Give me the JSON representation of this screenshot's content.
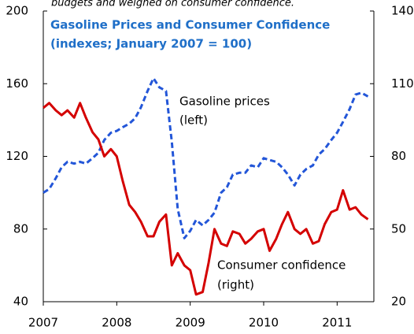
{
  "chart_data": {
    "type": "line",
    "caption": "budgets and weighed on consumer confidence.",
    "title": "Gasoline Prices and Consumer Confidence",
    "subtitle": "(indexes; January 2007 = 100)",
    "annotations": [
      "Gasoline prices",
      "(left)",
      "Consumer confidence",
      "(right)"
    ],
    "x": [
      2007,
      2007.08,
      2007.17,
      2007.25,
      2007.33,
      2007.42,
      2007.5,
      2007.58,
      2007.67,
      2007.75,
      2007.83,
      2007.92,
      2008,
      2008.08,
      2008.17,
      2008.25,
      2008.33,
      2008.42,
      2008.5,
      2008.58,
      2008.67,
      2008.75,
      2008.83,
      2008.92,
      2009,
      2009.08,
      2009.17,
      2009.25,
      2009.33,
      2009.42,
      2009.5,
      2009.58,
      2009.67,
      2009.75,
      2009.83,
      2009.92,
      2010,
      2010.08,
      2010.17,
      2010.25,
      2010.33,
      2010.42,
      2010.5,
      2010.58,
      2010.67,
      2010.75,
      2010.83,
      2010.92,
      2011,
      2011.08,
      2011.17,
      2011.25,
      2011.33,
      2011.42
    ],
    "series": [
      {
        "name": "Gasoline prices",
        "color": "#2356d8",
        "dash": true,
        "values": [
          100,
          102,
          108,
          114,
          117,
          116,
          117,
          116,
          119,
          122,
          129,
          133,
          134,
          136,
          138,
          141,
          147,
          156,
          163,
          158,
          156,
          128,
          91,
          75,
          79,
          85,
          82,
          85,
          89,
          100,
          103,
          110,
          111,
          111,
          115,
          114,
          119,
          118,
          117,
          114,
          110,
          104,
          110,
          113,
          115,
          121,
          124,
          129,
          133,
          139,
          146,
          154,
          155,
          153
        ]
      },
      {
        "name": "Consumer confidence",
        "color": "#d40000",
        "dash": false,
        "axis": "y2",
        "values": [
          100,
          102,
          99,
          97,
          99,
          96,
          102,
          96,
          90,
          87,
          80,
          83,
          80,
          70,
          60,
          57,
          53,
          47,
          47,
          53,
          56,
          35,
          40,
          35,
          33,
          23,
          24,
          36,
          50,
          44,
          43,
          49,
          48,
          44,
          46,
          49,
          50,
          41,
          46,
          52,
          57,
          50,
          48,
          50,
          44,
          45,
          52,
          57,
          58,
          66,
          58,
          59,
          56,
          54
        ]
      }
    ],
    "xlim": [
      2007,
      2011.5
    ],
    "xticks": [
      2007,
      2008,
      2009,
      2010,
      2011
    ],
    "ylim": [
      40,
      200
    ],
    "yticks": [
      40,
      80,
      120,
      160,
      200
    ],
    "y2lim": [
      20,
      140
    ],
    "y2ticks": [
      20,
      50,
      80,
      110,
      140
    ]
  }
}
